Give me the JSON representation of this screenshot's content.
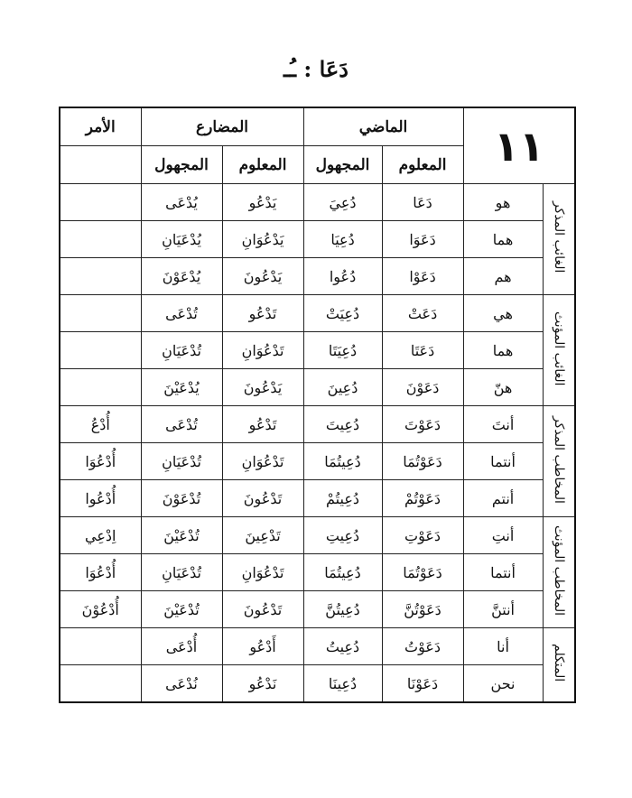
{
  "title": "دَعَا : ـُـ",
  "table_number": "١١",
  "headers": {
    "madi": "الماضي",
    "mudari": "المضارع",
    "amr": "الأمر",
    "maloom": "المعلوم",
    "majhool": "المجهول"
  },
  "groups": [
    "الغائب المذكر",
    "الغائب المؤنث",
    "المخاطب المذكر",
    "المخاطب المؤنث",
    "المتكلم"
  ],
  "rows": [
    {
      "pronoun": "هو",
      "madi_maloom": "دَعَا",
      "madi_majhool": "دُعِيَ",
      "mudari_maloom": "يَدْعُو",
      "mudari_majhool": "يُدْعَى",
      "amr": ""
    },
    {
      "pronoun": "هما",
      "madi_maloom": "دَعَوَا",
      "madi_majhool": "دُعِيَا",
      "mudari_maloom": "يَدْعُوَانِ",
      "mudari_majhool": "يُدْعَيَانِ",
      "amr": ""
    },
    {
      "pronoun": "هم",
      "madi_maloom": "دَعَوْا",
      "madi_majhool": "دُعُوا",
      "mudari_maloom": "يَدْعُونَ",
      "mudari_majhool": "يُدْعَوْنَ",
      "amr": ""
    },
    {
      "pronoun": "هي",
      "madi_maloom": "دَعَتْ",
      "madi_majhool": "دُعِيَتْ",
      "mudari_maloom": "تَدْعُو",
      "mudari_majhool": "تُدْعَى",
      "amr": ""
    },
    {
      "pronoun": "هما",
      "madi_maloom": "دَعَتَا",
      "madi_majhool": "دُعِيَتَا",
      "mudari_maloom": "تَدْعُوَانِ",
      "mudari_majhool": "تُدْعَيَانِ",
      "amr": ""
    },
    {
      "pronoun": "هنّ",
      "madi_maloom": "دَعَوْنَ",
      "madi_majhool": "دُعِينَ",
      "mudari_maloom": "يَدْعُونَ",
      "mudari_majhool": "يُدْعَيْنَ",
      "amr": ""
    },
    {
      "pronoun": "أنتَ",
      "madi_maloom": "دَعَوْتَ",
      "madi_majhool": "دُعِيتَ",
      "mudari_maloom": "تَدْعُو",
      "mudari_majhool": "تُدْعَى",
      "amr": "أُدْعُ"
    },
    {
      "pronoun": "أنتما",
      "madi_maloom": "دَعَوْتُمَا",
      "madi_majhool": "دُعِيتُمَا",
      "mudari_maloom": "تَدْعُوَانِ",
      "mudari_majhool": "تُدْعَيَانِ",
      "amr": "أُدْعُوَا"
    },
    {
      "pronoun": "أنتم",
      "madi_maloom": "دَعَوْتُمْ",
      "madi_majhool": "دُعِيتُمْ",
      "mudari_maloom": "تَدْعُونَ",
      "mudari_majhool": "تُدْعَوْنَ",
      "amr": "أُدْعُوا"
    },
    {
      "pronoun": "أنتِ",
      "madi_maloom": "دَعَوْتِ",
      "madi_majhool": "دُعِيتِ",
      "mudari_maloom": "تَدْعِينَ",
      "mudari_majhool": "تُدْعَيْنَ",
      "amr": "اِدْعِي"
    },
    {
      "pronoun": "أنتما",
      "madi_maloom": "دَعَوْتُمَا",
      "madi_majhool": "دُعِيتُمَا",
      "mudari_maloom": "تَدْعُوَانِ",
      "mudari_majhool": "تُدْعَيَانِ",
      "amr": "أُدْعُوَا"
    },
    {
      "pronoun": "أنتنَّ",
      "madi_maloom": "دَعَوْتُنَّ",
      "madi_majhool": "دُعِيتُنَّ",
      "mudari_maloom": "تَدْعُونَ",
      "mudari_majhool": "تُدْعَيْنَ",
      "amr": "أُدْعُوْنَ"
    },
    {
      "pronoun": "أنا",
      "madi_maloom": "دَعَوْتُ",
      "madi_majhool": "دُعِيتُ",
      "mudari_maloom": "أَدْعُو",
      "mudari_majhool": "أُدْعَى",
      "amr": ""
    },
    {
      "pronoun": "نحن",
      "madi_maloom": "دَعَوْنَا",
      "madi_majhool": "دُعِينَا",
      "mudari_maloom": "نَدْعُو",
      "mudari_majhool": "نُدْعَى",
      "amr": ""
    }
  ]
}
